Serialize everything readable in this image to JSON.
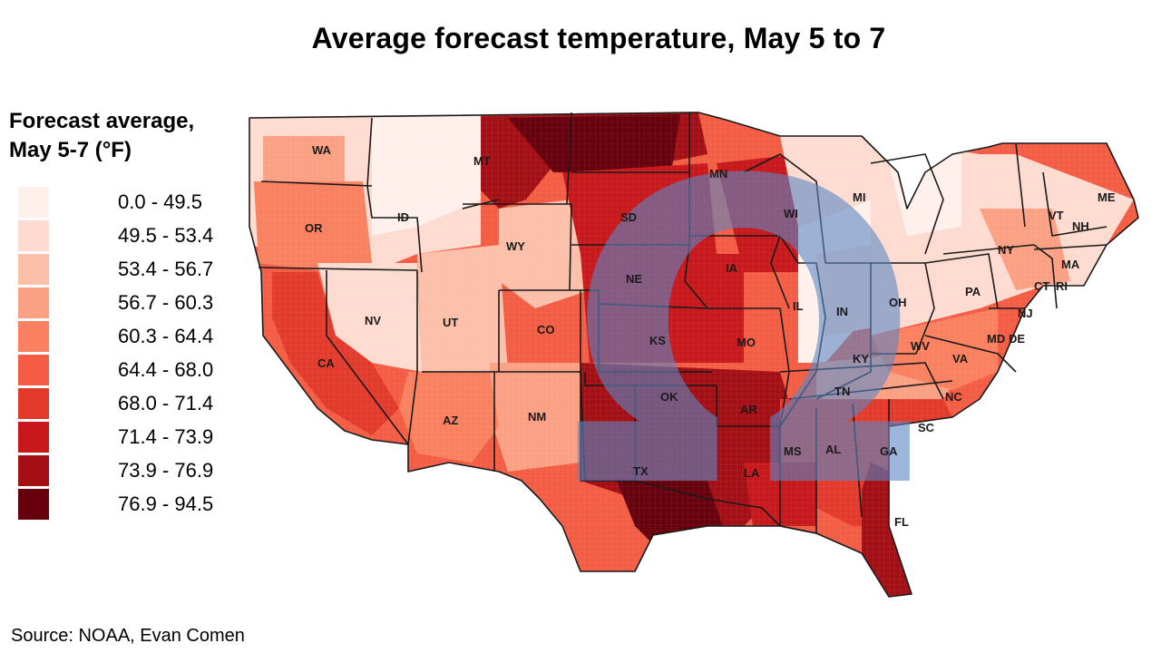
{
  "title": "Average forecast temperature, May 5 to 7",
  "legend": {
    "title_line1": "Forecast average,",
    "title_line2": "May 5-7 (°F)",
    "bins": [
      {
        "label": "0.0 - 49.5",
        "color": "#fff0ec"
      },
      {
        "label": "49.5 - 53.4",
        "color": "#fddbd0"
      },
      {
        "label": "53.4 - 56.7",
        "color": "#fcbfaa"
      },
      {
        "label": "56.7 - 60.3",
        "color": "#fca083"
      },
      {
        "label": "60.3 - 64.4",
        "color": "#fa8060"
      },
      {
        "label": "64.4 - 68.0",
        "color": "#f45c43"
      },
      {
        "label": "68.0 - 71.4",
        "color": "#e33a2c"
      },
      {
        "label": "71.4 - 73.9",
        "color": "#c8181c"
      },
      {
        "label": "73.9 - 76.9",
        "color": "#a40f15"
      },
      {
        "label": "76.9 - 94.5",
        "color": "#67000d"
      }
    ]
  },
  "states": {
    "WA": "WA",
    "OR": "OR",
    "CA": "CA",
    "ID": "ID",
    "NV": "NV",
    "MT": "MT",
    "WY": "WY",
    "UT": "UT",
    "AZ": "AZ",
    "CO": "CO",
    "NM": "NM",
    "SD": "SD",
    "NE": "NE",
    "KS": "KS",
    "OK": "OK",
    "TX": "TX",
    "MN": "MN",
    "IA": "IA",
    "MO": "MO",
    "AR": "AR",
    "LA": "LA",
    "WI": "WI",
    "IL": "IL",
    "MI": "MI",
    "IN": "IN",
    "OH": "OH",
    "KY": "KY",
    "TN": "TN",
    "MS": "MS",
    "AL": "AL",
    "GA": "GA",
    "FL": "FL",
    "SC": "SC",
    "NC": "NC",
    "VA": "VA",
    "WV": "WV",
    "PA": "PA",
    "NY": "NY",
    "MD": "MD",
    "DE": "DE",
    "NJ": "NJ",
    "CT": "CT",
    "RI": "RI",
    "MA": "MA",
    "VT": "VT",
    "NH": "NH",
    "ME": "ME"
  },
  "watermark": "Ω",
  "source": "Source: NOAA, Evan Comen"
}
